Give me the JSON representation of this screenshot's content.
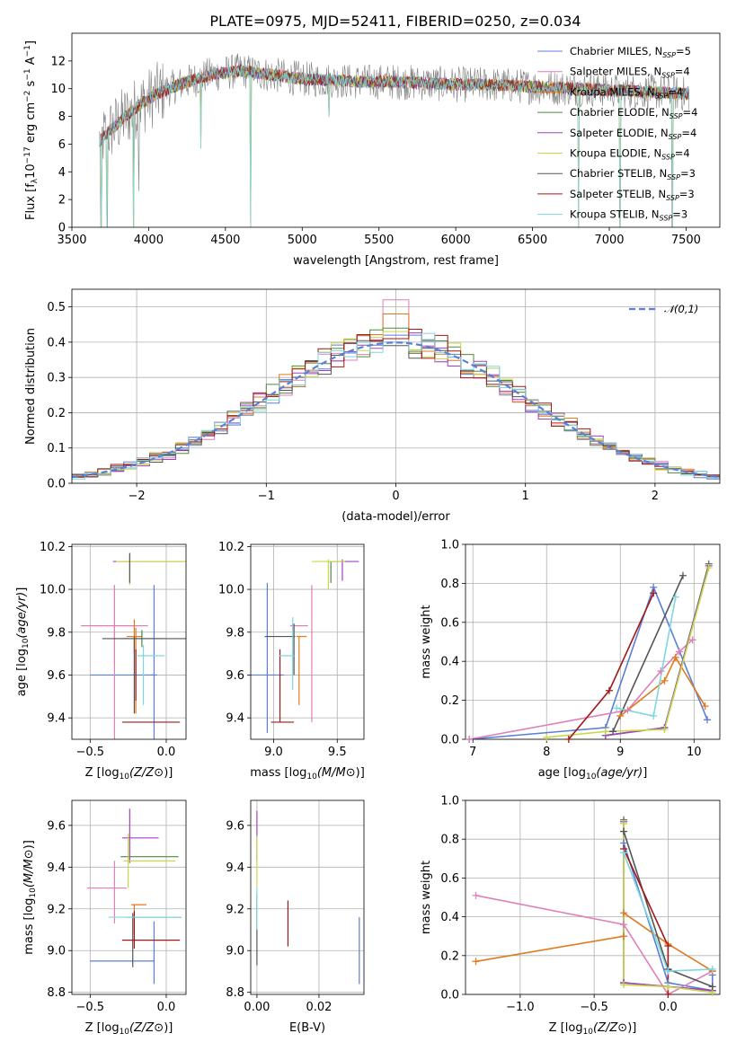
{
  "figure": {
    "title": "PLATE=0975, MJD=52411, FIBERID=0250, z=0.034"
  },
  "series_styles": [
    {
      "name": "Chabrier MILES, N$_{SSP}$=5",
      "label_main": "Chabrier MILES, N",
      "label_sub": "SSP",
      "label_tail": "=5",
      "color": "#5b7fd6"
    },
    {
      "name": "Salpeter MILES, N$_{SSP}$=4",
      "label_main": "Salpeter MILES, N",
      "label_sub": "SSP",
      "label_tail": "=4",
      "color": "#e07fb8"
    },
    {
      "name": "Kroupa MILES, N$_{SSP}$=4",
      "label_main": "Kroupa MILES, N",
      "label_sub": "SSP",
      "label_tail": "=4",
      "color": "#e07a1f"
    },
    {
      "name": "Chabrier ELODIE, N$_{SSP}$=4",
      "label_main": "Chabrier ELODIE, N",
      "label_sub": "SSP",
      "label_tail": "=4",
      "color": "#4e8a3c"
    },
    {
      "name": "Salpeter ELODIE, N$_{SSP}$=4",
      "label_main": "Salpeter ELODIE, N",
      "label_sub": "SSP",
      "label_tail": "=4",
      "color": "#a43fc0"
    },
    {
      "name": "Kroupa ELODIE, N$_{SSP}$=4",
      "label_main": "Kroupa ELODIE, N",
      "label_sub": "SSP",
      "label_tail": "=4",
      "color": "#c8d84a"
    },
    {
      "name": "Chabrier STELIB, N$_{SSP}$=3",
      "label_main": "Chabrier STELIB, N",
      "label_sub": "SSP",
      "label_tail": "=3",
      "color": "#555555"
    },
    {
      "name": "Salpeter STELIB, N$_{SSP}$=3",
      "label_main": "Salpeter STELIB, N",
      "label_sub": "SSP",
      "label_tail": "=3",
      "color": "#a01818"
    },
    {
      "name": "Kroupa STELIB, N$_{SSP}$=3",
      "label_main": "Kroupa STELIB, N",
      "label_sub": "SSP",
      "label_tail": "=3",
      "color": "#7fd6e0"
    }
  ],
  "chart_data": [
    {
      "id": "spectrum",
      "type": "line",
      "title": "PLATE=0975, MJD=52411, FIBERID=0250, z=0.034",
      "xlabel": "wavelength [Angstrom, rest frame]",
      "ylabel": "Flux [f_λ 10^-17 erg cm^-2 s^-1 A^-1]",
      "xlim": [
        3500,
        7720
      ],
      "ylim": [
        0,
        14
      ],
      "xticks": [
        3500,
        4000,
        4500,
        5000,
        5500,
        6000,
        6500,
        7000,
        7500
      ],
      "yticks": [
        0,
        2,
        4,
        6,
        8,
        10,
        12
      ],
      "grid": false,
      "legend": "top-right",
      "data_color": "#808080",
      "continuum": {
        "x": [
          3680,
          3750,
          3850,
          3950,
          4050,
          4200,
          4400,
          4600,
          4800,
          5000,
          5200,
          5400,
          5600,
          5800,
          6000,
          6200,
          6400,
          6600,
          6800,
          7000,
          7200,
          7400,
          7520
        ],
        "y": [
          6.2,
          7.0,
          8.0,
          8.9,
          9.6,
          10.3,
          11.0,
          11.3,
          11.0,
          10.7,
          10.6,
          10.5,
          10.5,
          10.4,
          10.3,
          10.3,
          10.2,
          10.1,
          10.0,
          9.9,
          9.8,
          9.7,
          9.6
        ]
      },
      "noise_amplitude": 1.3,
      "spikes": [
        {
          "x": 3690,
          "y": 0.0
        },
        {
          "x": 3730,
          "y": 0.0
        },
        {
          "x": 3900,
          "y": 0.0
        },
        {
          "x": 3935,
          "y": 2.6
        },
        {
          "x": 4340,
          "y": 5.7
        },
        {
          "x": 4665,
          "y": 0.0
        },
        {
          "x": 5175,
          "y": 8.0
        },
        {
          "x": 6800,
          "y": 0.0
        },
        {
          "x": 7070,
          "y": 0.0
        },
        {
          "x": 7410,
          "y": 0.0
        }
      ]
    },
    {
      "id": "residuals",
      "type": "histogram",
      "xlabel": "(data-model)/error",
      "ylabel": "Normed distribution",
      "xlim": [
        -2.5,
        2.5
      ],
      "ylim": [
        0,
        0.55
      ],
      "xticks": [
        -2,
        -1,
        0,
        1,
        2
      ],
      "yticks": [
        0.0,
        0.1,
        0.2,
        0.3,
        0.4,
        0.5
      ],
      "grid": true,
      "bin_width": 0.1,
      "legend": {
        "position": "top-right",
        "label": "𝒩(0,1)"
      },
      "gaussian_color": "#5b7fd6",
      "peak_values": [
        0.42,
        0.52,
        0.48,
        0.44,
        0.4,
        0.43,
        0.39,
        0.41,
        0.4
      ]
    },
    {
      "id": "age_vs_Z",
      "type": "errorbar",
      "xlabel": "Z [log10(Z/Z⊙)]",
      "ylabel": "age  [log10(age/yr)]",
      "xlim": [
        -0.62,
        0.13
      ],
      "ylim": [
        9.3,
        10.21
      ],
      "xticks": [
        -0.5,
        0.0
      ],
      "xtick_labels": [
        "−0.5",
        "0.0"
      ],
      "yticks": [
        9.4,
        9.6,
        9.8,
        10.0,
        10.2
      ],
      "grid": true,
      "points": [
        {
          "s": 0,
          "x": -0.08,
          "xerr": 0.02,
          "y": 9.6,
          "yerr": 0.42
        },
        {
          "s": 0,
          "x": -0.29,
          "xerr": 0.21,
          "y": 9.6,
          "yerr": 0.0
        },
        {
          "s": 1,
          "x": -0.34,
          "xerr": 0.22,
          "y": 9.83,
          "yerr": 0.19
        },
        {
          "s": 1,
          "x": -0.34,
          "xerr": 0.0,
          "y": 9.66,
          "yerr": 0.36
        },
        {
          "s": 2,
          "x": -0.21,
          "xerr": 0.05,
          "y": 9.78,
          "yerr": 0.08
        },
        {
          "s": 2,
          "x": -0.2,
          "xerr": 0.0,
          "y": 9.62,
          "yerr": 0.2
        },
        {
          "s": 3,
          "x": -0.16,
          "xerr": 0.14,
          "y": 9.77,
          "yerr": 0.04
        },
        {
          "s": 4,
          "x": -0.12,
          "xerr": 0.23,
          "y": 10.13,
          "yerr": 0.0
        },
        {
          "s": 5,
          "x": -0.1,
          "xerr": 0.23,
          "y": 10.13,
          "yerr": 0.0
        },
        {
          "s": 5,
          "x": -0.24,
          "xerr": 0.0,
          "y": 10.09,
          "yerr": 0.07
        },
        {
          "s": 6,
          "x": -0.14,
          "xerr": 0.28,
          "y": 9.77,
          "yerr": 0.0
        },
        {
          "s": 6,
          "x": -0.21,
          "xerr": 0.0,
          "y": 9.6,
          "yerr": 0.18
        },
        {
          "s": 6,
          "x": -0.24,
          "xerr": 0.0,
          "y": 10.1,
          "yerr": 0.07
        },
        {
          "s": 7,
          "x": -0.1,
          "xerr": 0.19,
          "y": 9.38,
          "yerr": 0.0
        },
        {
          "s": 7,
          "x": -0.2,
          "xerr": 0.0,
          "y": 9.6,
          "yerr": 0.12
        },
        {
          "s": 8,
          "x": -0.1,
          "xerr": 0.09,
          "y": 9.69,
          "yerr": 0.0
        },
        {
          "s": 8,
          "x": -0.15,
          "xerr": 0.0,
          "y": 9.6,
          "yerr": 0.14
        }
      ]
    },
    {
      "id": "age_vs_mass",
      "type": "errorbar",
      "xlabel": "mass [log10(M/M⊙)]",
      "ylabel": "",
      "xlim": [
        8.82,
        9.71
      ],
      "ylim": [
        9.3,
        10.21
      ],
      "xticks": [
        9.0,
        9.5
      ],
      "xtick_labels": [
        "9.0",
        "9.5"
      ],
      "yticks": [
        9.4,
        9.6,
        9.8,
        10.0,
        10.2
      ],
      "grid": true,
      "points": [
        {
          "s": 0,
          "x": 8.95,
          "xerr": 0.0,
          "y": 9.68,
          "yerr": 0.35
        },
        {
          "s": 0,
          "x": 8.95,
          "xerr": 0.13,
          "y": 9.6,
          "yerr": 0.0
        },
        {
          "s": 1,
          "x": 9.3,
          "xerr": 0.0,
          "y": 9.7,
          "yerr": 0.32
        },
        {
          "s": 1,
          "x": 9.2,
          "xerr": 0.07,
          "y": 9.83,
          "yerr": 0.0
        },
        {
          "s": 2,
          "x": 9.22,
          "xerr": 0.04,
          "y": 9.78,
          "yerr": 0.0
        },
        {
          "s": 2,
          "x": 9.2,
          "xerr": 0.0,
          "y": 9.62,
          "yerr": 0.16
        },
        {
          "s": 3,
          "x": 9.45,
          "xerr": 0.0,
          "y": 10.08,
          "yerr": 0.05
        },
        {
          "s": 4,
          "x": 9.55,
          "xerr": 0.12,
          "y": 10.13,
          "yerr": 0.0
        },
        {
          "s": 4,
          "x": 9.54,
          "xerr": 0.0,
          "y": 10.09,
          "yerr": 0.05
        },
        {
          "s": 5,
          "x": 9.43,
          "xerr": 0.13,
          "y": 10.13,
          "yerr": 0.0
        },
        {
          "s": 5,
          "x": 9.43,
          "xerr": 0.0,
          "y": 10.07,
          "yerr": 0.07
        },
        {
          "s": 6,
          "x": 9.16,
          "xerr": 0.0,
          "y": 9.72,
          "yerr": 0.12
        },
        {
          "s": 6,
          "x": 9.05,
          "xerr": 0.12,
          "y": 9.78,
          "yerr": 0.0
        },
        {
          "s": 7,
          "x": 9.05,
          "xerr": 0.0,
          "y": 9.55,
          "yerr": 0.17
        },
        {
          "s": 7,
          "x": 9.07,
          "xerr": 0.09,
          "y": 9.38,
          "yerr": 0.0
        },
        {
          "s": 8,
          "x": 9.15,
          "xerr": 0.0,
          "y": 9.7,
          "yerr": 0.17
        },
        {
          "s": 8,
          "x": 9.1,
          "xerr": 0.06,
          "y": 9.69,
          "yerr": 0.0
        }
      ]
    },
    {
      "id": "weight_vs_age",
      "type": "line",
      "xlabel": "age  [log10(age/yr)]",
      "ylabel": "mass weight",
      "xlim": [
        6.9,
        10.35
      ],
      "ylim": [
        0,
        1.0
      ],
      "xticks": [
        7,
        8,
        9,
        10
      ],
      "yticks": [
        0.0,
        0.2,
        0.4,
        0.6,
        0.8,
        1.0
      ],
      "grid": true,
      "series": [
        {
          "s": 0,
          "x": [
            6.95,
            8.8,
            9.45,
            10.18
          ],
          "y": [
            0.0,
            0.06,
            0.78,
            0.1
          ]
        },
        {
          "s": 1,
          "x": 6.95,
          "xs": [
            6.95,
            9.1,
            9.55,
            9.8,
            9.98
          ],
          "ys": [
            0.0,
            0.15,
            0.35,
            0.45,
            0.51
          ]
        },
        {
          "s": 2,
          "x": [
            9.0,
            9.6,
            9.75,
            10.15
          ],
          "y": [
            0.12,
            0.3,
            0.42,
            0.17
          ]
        },
        {
          "s": 3,
          "x": [
            8.8,
            9.6,
            10.2
          ],
          "y": [
            0.02,
            0.06,
            0.9
          ]
        },
        {
          "s": 4,
          "x": [
            8.8,
            9.6,
            10.2
          ],
          "y": [
            0.02,
            0.06,
            0.89
          ]
        },
        {
          "s": 5,
          "x": [
            8.0,
            8.8,
            9.6,
            10.2
          ],
          "y": [
            0.01,
            0.04,
            0.05,
            0.88
          ]
        },
        {
          "s": 6,
          "x": [
            8.9,
            9.85
          ],
          "y": [
            0.04,
            0.84
          ]
        },
        {
          "s": 7,
          "x": [
            8.3,
            8.85,
            9.45
          ],
          "y": [
            0.0,
            0.25,
            0.75
          ]
        },
        {
          "s": 8,
          "x": [
            8.95,
            9.45,
            9.75
          ],
          "y": [
            0.16,
            0.12,
            0.73
          ]
        }
      ]
    },
    {
      "id": "mass_vs_Z",
      "type": "errorbar",
      "xlabel": "Z [log10(Z/Z⊙)]",
      "ylabel": "mass [log10(M/M⊙)]",
      "xlim": [
        -0.62,
        0.13
      ],
      "ylim": [
        8.79,
        9.72
      ],
      "xticks": [
        -0.5,
        0.0
      ],
      "xtick_labels": [
        "−0.5",
        "0.0"
      ],
      "yticks": [
        8.8,
        9.0,
        9.2,
        9.4,
        9.6
      ],
      "grid": true,
      "points": [
        {
          "s": 0,
          "x": -0.29,
          "xerr": 0.21,
          "y": 8.95,
          "yerr": 0.0
        },
        {
          "s": 0,
          "x": -0.08,
          "xerr": 0.0,
          "y": 8.99,
          "yerr": 0.15
        },
        {
          "s": 1,
          "x": -0.39,
          "xerr": 0.13,
          "y": 9.3,
          "yerr": 0.0
        },
        {
          "s": 1,
          "x": -0.34,
          "xerr": 0.0,
          "y": 9.28,
          "yerr": 0.15
        },
        {
          "s": 2,
          "x": -0.18,
          "xerr": 0.05,
          "y": 9.22,
          "yerr": 0.0
        },
        {
          "s": 2,
          "x": -0.21,
          "xerr": 0.0,
          "y": 9.15,
          "yerr": 0.07
        },
        {
          "s": 3,
          "x": -0.11,
          "xerr": 0.19,
          "y": 9.45,
          "yerr": 0.0
        },
        {
          "s": 4,
          "x": -0.17,
          "xerr": 0.12,
          "y": 9.54,
          "yerr": 0.0
        },
        {
          "s": 4,
          "x": -0.24,
          "xerr": 0.0,
          "y": 9.55,
          "yerr": 0.13
        },
        {
          "s": 5,
          "x": -0.11,
          "xerr": 0.17,
          "y": 9.43,
          "yerr": 0.0
        },
        {
          "s": 5,
          "x": -0.25,
          "xerr": 0.0,
          "y": 9.43,
          "yerr": 0.13
        },
        {
          "s": 6,
          "x": -0.08,
          "xerr": 0.18,
          "y": 9.16,
          "yerr": 0.0
        },
        {
          "s": 6,
          "x": -0.22,
          "xerr": 0.0,
          "y": 9.05,
          "yerr": 0.13
        },
        {
          "s": 7,
          "x": -0.1,
          "xerr": 0.19,
          "y": 9.05,
          "yerr": 0.0
        },
        {
          "s": 7,
          "x": -0.21,
          "xerr": 0.0,
          "y": 9.1,
          "yerr": 0.09
        },
        {
          "s": 8,
          "x": -0.14,
          "xerr": 0.24,
          "y": 9.16,
          "yerr": 0.0
        }
      ]
    },
    {
      "id": "mass_vs_ebv",
      "type": "errorbar",
      "xlabel": "E(B-V)",
      "ylabel": "",
      "xlim": [
        -0.002,
        0.0345
      ],
      "ylim": [
        8.79,
        9.72
      ],
      "xticks": [
        0.0,
        0.02
      ],
      "xtick_labels": [
        "0.00",
        "0.02"
      ],
      "yticks": [
        8.8,
        9.0,
        9.2,
        9.4,
        9.6
      ],
      "grid": true,
      "points": [
        {
          "s": 0,
          "x": 0.033,
          "xerr": 0.0,
          "y": 9.0,
          "yerr": 0.16
        },
        {
          "s": 4,
          "x": 0.0,
          "xerr": 0.0,
          "y": 9.55,
          "yerr": 0.12
        },
        {
          "s": 5,
          "x": 0.0,
          "xerr": 0.0,
          "y": 9.43,
          "yerr": 0.12
        },
        {
          "s": 6,
          "x": 0.0,
          "xerr": 0.0,
          "y": 9.1,
          "yerr": 0.17
        },
        {
          "s": 7,
          "x": 0.01,
          "xerr": 0.0,
          "y": 9.13,
          "yerr": 0.11
        },
        {
          "s": 8,
          "x": 0.0,
          "xerr": 0.0,
          "y": 9.2,
          "yerr": 0.1
        }
      ]
    },
    {
      "id": "weight_vs_Z",
      "type": "line",
      "xlabel": "Z [log10(Z/Z⊙)]",
      "ylabel": "mass weight",
      "xlim": [
        -1.37,
        0.35
      ],
      "ylim": [
        0,
        1.0
      ],
      "xticks": [
        -1.0,
        -0.5,
        0.0
      ],
      "xtick_labels": [
        "−1.0",
        "−0.5",
        "0.0"
      ],
      "yticks": [
        0.0,
        0.2,
        0.4,
        0.6,
        0.8,
        1.0
      ],
      "grid": true,
      "series": [
        {
          "s": 0,
          "x": [
            -0.3,
            0.0,
            0.3,
            0.3
          ],
          "y": [
            0.78,
            0.06,
            0.02,
            0.1
          ]
        },
        {
          "s": 1,
          "x": [
            -1.3,
            -0.3,
            0.0,
            0.3
          ],
          "y": [
            0.51,
            0.36,
            0.0,
            0.12
          ]
        },
        {
          "s": 2,
          "x": [
            -1.3,
            -0.3,
            -0.3,
            0.0,
            0.3
          ],
          "y": [
            0.17,
            0.3,
            0.42,
            0.26,
            0.12
          ]
        },
        {
          "s": 3,
          "x": [
            -0.3,
            -0.3,
            0.3
          ],
          "y": [
            0.9,
            0.06,
            0.02
          ]
        },
        {
          "s": 4,
          "x": [
            -0.3,
            -0.3,
            0.3
          ],
          "y": [
            0.89,
            0.06,
            0.02
          ]
        },
        {
          "s": 5,
          "x": [
            -0.3,
            -0.3,
            0.0,
            0.3
          ],
          "y": [
            0.88,
            0.05,
            0.04,
            0.01
          ]
        },
        {
          "s": 6,
          "x": [
            -0.3,
            0.0,
            0.3
          ],
          "y": [
            0.84,
            0.13,
            0.04
          ]
        },
        {
          "s": 7,
          "x": [
            -0.3,
            0.0,
            0.0
          ],
          "y": [
            0.75,
            0.25,
            0.0
          ]
        },
        {
          "s": 8,
          "x": [
            -0.3,
            0.0,
            0.3
          ],
          "y": [
            0.73,
            0.12,
            0.13
          ]
        }
      ]
    }
  ]
}
